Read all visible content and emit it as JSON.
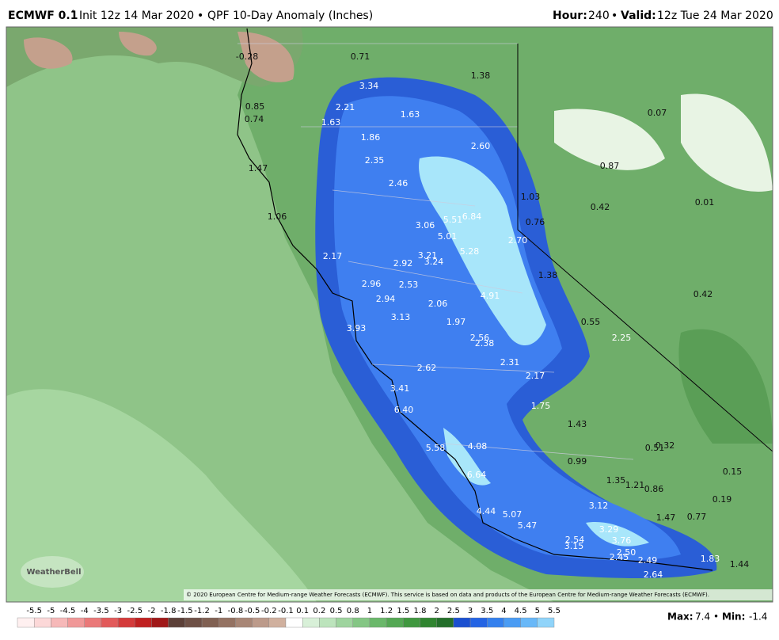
{
  "header": {
    "model": "ECMWF 0.1",
    "model_suffix": "°",
    "separator": "•",
    "init": "Init 12z 14 Mar 2020",
    "product": "QPF 10-Day Anomaly (Inches)",
    "hour_label": "Hour:",
    "hour": "240",
    "valid_label": "Valid:",
    "valid": "12z Tue 24 Mar 2020"
  },
  "map": {
    "labels": [
      "-0.28",
      "0.71",
      "3.34",
      "1.38",
      "0.85",
      "2.21",
      "0.74",
      "1.63",
      "1.63",
      "0.07",
      "1.86",
      "2.60",
      "1.47",
      "2.35",
      "0.87",
      "2.46",
      "1.03",
      "0.42",
      "0.01",
      "1.06",
      "5.51",
      "6.84",
      "3.06",
      "0.76",
      "5.01",
      "2.70",
      "2.17",
      "5.28",
      "3.21",
      "2.92",
      "3.24",
      "1.38",
      "2.96",
      "2.53",
      "4.91",
      "0.42",
      "2.94",
      "2.06",
      "3.13",
      "0.55",
      "3.93",
      "1.97",
      "2.25",
      "2.56",
      "2.38",
      "2.31",
      "2.62",
      "2.17",
      "3.41",
      "1.75",
      "6.40",
      "1.43",
      "5.58",
      "4.08",
      "0.51",
      "0.32",
      "0.99",
      "6.64",
      "0.15",
      "1.35",
      "1.21",
      "0.86",
      "3.12",
      "0.19",
      "4.44",
      "5.07",
      "1.47",
      "0.77",
      "5.47",
      "3.29",
      "2.54",
      "3.76",
      "3.15",
      "2.50",
      "2.45",
      "2.49",
      "1.83",
      "1.44",
      "2.64"
    ],
    "credit": "© 2020 European Centre for Medium-range Weather Forecasts (ECMWF). This service is based on data and products of the European Centre for Medium-range Weather Forecasts (ECMWF).",
    "logo": "WeatherBell"
  },
  "colorbar": {
    "labels": [
      "-5.5",
      "-5",
      "-4.5",
      "-4",
      "-3.5",
      "-3",
      "-2.5",
      "-2",
      "-1.8",
      "-1.5",
      "-1.2",
      "-1",
      "-0.8",
      "-0.5",
      "-0.2",
      "-0.1",
      "0.1",
      "0.2",
      "0.5",
      "0.8",
      "1",
      "1.2",
      "1.5",
      "1.8",
      "2",
      "2.5",
      "3",
      "3.5",
      "4",
      "4.5",
      "5",
      "5.5"
    ],
    "colors": [
      "#fff0f0",
      "#fcd8d8",
      "#f6b8b8",
      "#f09898",
      "#ea7878",
      "#e25a5a",
      "#d43a3a",
      "#c02020",
      "#a01818",
      "#5c4038",
      "#6e5046",
      "#806052",
      "#947262",
      "#a88676",
      "#bc9a8a",
      "#d0b09e",
      "#ffffff",
      "#d8f0d8",
      "#bce4bc",
      "#9ed49e",
      "#84c684",
      "#6ab86a",
      "#54a854",
      "#40983f",
      "#308530",
      "#236f2a",
      "#1a4fd0",
      "#2464e4",
      "#3480ee",
      "#4a9cf4",
      "#68b8f8",
      "#90d4fa"
    ]
  },
  "footer": {
    "max_label": "Max:",
    "max": "7.4",
    "min_label": "Min:",
    "min": "-1.4"
  }
}
